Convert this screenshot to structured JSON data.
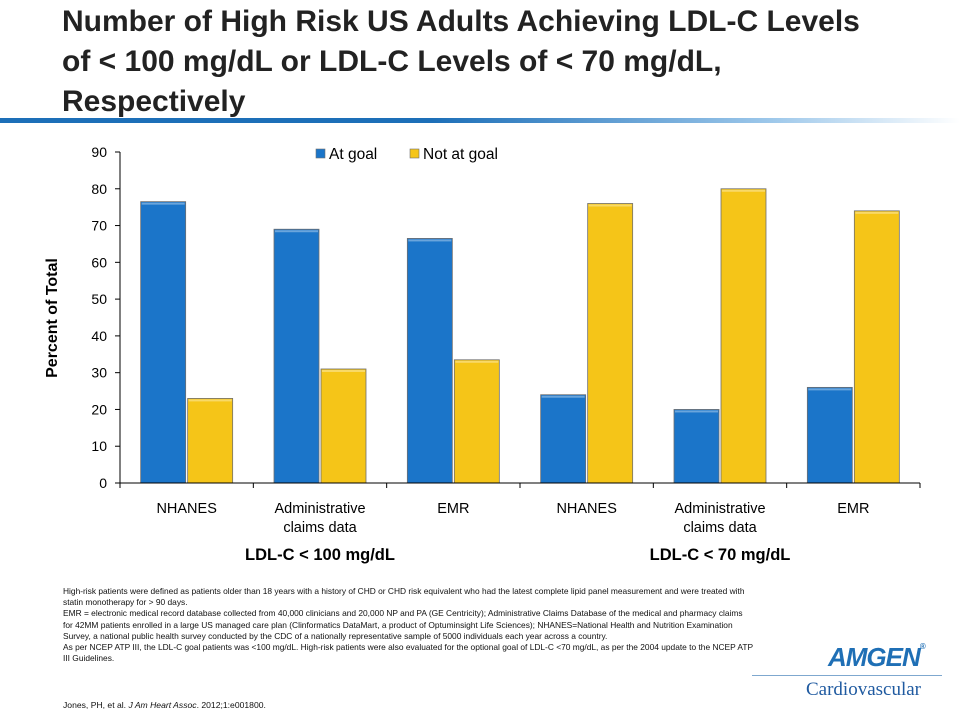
{
  "title": "Number of High Risk US Adults Achieving LDL-C Levels of < 100 mg/dL or LDL-C Levels of < 70 mg/dL, Respectively",
  "chart_data": {
    "type": "bar",
    "ylabel": "Percent of Total",
    "ylim": [
      0,
      90
    ],
    "yticks": [
      0,
      10,
      20,
      30,
      40,
      50,
      60,
      70,
      80,
      90
    ],
    "categories": [
      "NHANES",
      "Administrative claims data",
      "EMR",
      "NHANES",
      "Administrative claims data",
      "EMR"
    ],
    "category_lines": [
      [
        "NHANES"
      ],
      [
        "Administrative",
        "claims data"
      ],
      [
        "EMR"
      ],
      [
        "NHANES"
      ],
      [
        "Administrative",
        "claims data"
      ],
      [
        "EMR"
      ]
    ],
    "groups": [
      "LDL-C < 100 mg/dL",
      "LDL-C < 70 mg/dL"
    ],
    "series": [
      {
        "name": "At goal",
        "color": "#1b75c9",
        "values": [
          76.5,
          69,
          66.5,
          24,
          20,
          26
        ]
      },
      {
        "name": "Not at goal",
        "color": "#f5c518",
        "values": [
          23,
          31,
          33.5,
          76,
          80,
          74
        ]
      }
    ],
    "legend": "top-center",
    "grid": false
  },
  "footnotes": [
    "High-risk patients were defined as patients older than 18 years with a history of CHD or CHD risk equivalent who had the latest complete lipid panel measurement and were treated with statin monotherapy for > 90 days.",
    "EMR = electronic medical record database collected from 40,000 clinicians and 20,000 NP and PA (GE Centricity); Administrative Claims Database of the medical and pharmacy claims for 42MM patients enrolled in a large US managed care plan (Clinformatics DataMart, a product of Optuminsight Life Sciences); NHANES=National Health and Nutrition Examination Survey, a national public health survey conducted by the CDC of a nationally representative sample of 5000 individuals each year across a country.",
    "As per NCEP ATP III, the LDL-C goal patients was <100 mg/dL. High-risk patients were also evaluated for the optional goal of LDL-C <70 mg/dL, as per the 2004 update to the NCEP ATP III Guidelines."
  ],
  "citation": {
    "authors": "Jones, PH, et al. ",
    "journal": "J Am Heart Assoc",
    "details": ". 2012;1:e001800."
  },
  "logo": {
    "brand": "AMGEN",
    "division": "Cardiovascular"
  },
  "colors": {
    "title_underline": "#1d6fb8",
    "at_goal": "#1b75c9",
    "not_at_goal": "#f5c518"
  }
}
